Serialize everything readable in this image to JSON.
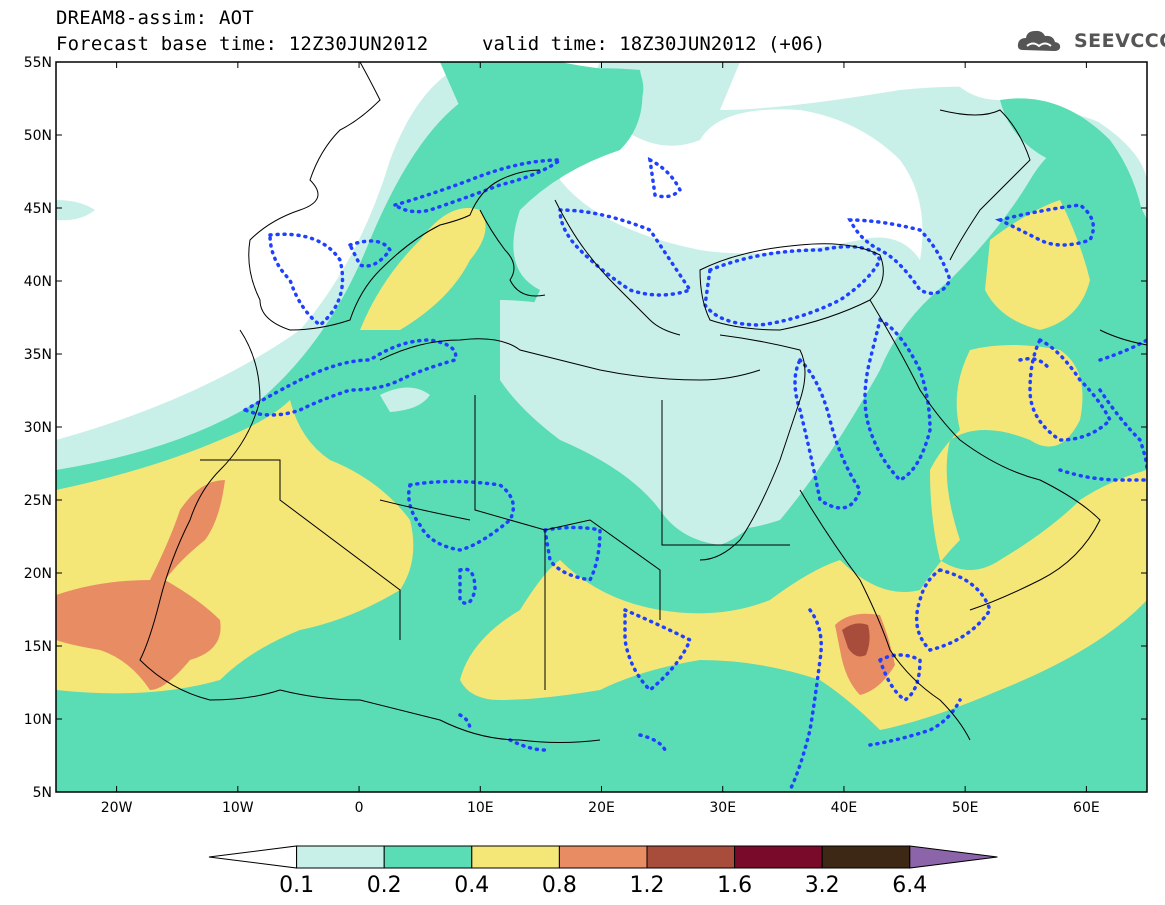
{
  "title": {
    "line1": "DREAM8-assim: AOT",
    "line2": "Forecast base time: 12Z30JUN2012",
    "valid": "valid time: 18Z30JUN2012 (+06)"
  },
  "logo": {
    "text": "SEEVCCC",
    "icon": "cloud-logo-icon"
  },
  "map": {
    "lon_range": [
      -25,
      65
    ],
    "lat_range": [
      5,
      55
    ],
    "lat_labels": [
      "55N",
      "50N",
      "45N",
      "40N",
      "35N",
      "30N",
      "25N",
      "20N",
      "15N",
      "10N",
      "5N"
    ],
    "lon_labels": [
      "20W",
      "10W",
      "0",
      "10E",
      "20E",
      "30E",
      "40E",
      "50E",
      "60E"
    ]
  },
  "colorbar": {
    "levels": [
      "0.1",
      "0.2",
      "0.4",
      "0.8",
      "1.2",
      "1.6",
      "3.2",
      "6.4"
    ],
    "colors": [
      "#ffffff",
      "#c8f0e8",
      "#5adcb4",
      "#f5e678",
      "#e88c64",
      "#a84c3c",
      "#7a0a2a",
      "#3c2814",
      "#8c64aa"
    ]
  },
  "colors": {
    "very_low": "#c8f0e8",
    "low": "#5adcb4",
    "medium": "#f5e678",
    "high": "#e88c64",
    "very_high": "#a84c3c",
    "contour": "#2040ff",
    "coast": "#000000"
  }
}
